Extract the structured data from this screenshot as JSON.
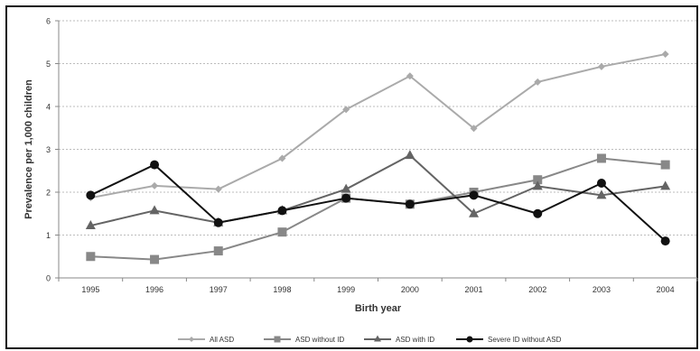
{
  "chart_data": {
    "type": "line",
    "title": "",
    "xlabel": "Birth year",
    "ylabel": "Prevalence per 1,000 children",
    "categories": [
      "1995",
      "1996",
      "1997",
      "1998",
      "1999",
      "2000",
      "2001",
      "2002",
      "2003",
      "2004"
    ],
    "ylim": [
      0,
      6
    ],
    "yticks": [
      0,
      1,
      2,
      3,
      4,
      5,
      6
    ],
    "grid": "horizontal dashed",
    "legend_position": "bottom",
    "series": [
      {
        "name": "All ASD",
        "color": "#aaaaaa",
        "marker": "diamond",
        "values": [
          1.87,
          2.15,
          2.07,
          2.79,
          3.93,
          4.71,
          3.49,
          4.57,
          4.93,
          5.22
        ]
      },
      {
        "name": "ASD without ID",
        "color": "#888888",
        "marker": "square",
        "values": [
          0.5,
          0.43,
          0.63,
          1.07,
          1.86,
          1.72,
          2.0,
          2.29,
          2.79,
          2.64
        ]
      },
      {
        "name": "ASD with ID",
        "color": "#646464",
        "marker": "triangle",
        "values": [
          1.22,
          1.57,
          1.29,
          1.57,
          2.07,
          2.86,
          1.5,
          2.14,
          1.93,
          2.14
        ]
      },
      {
        "name": "Severe ID without ASD",
        "color": "#111111",
        "marker": "circle",
        "values": [
          1.93,
          2.64,
          1.29,
          1.57,
          1.86,
          1.72,
          1.93,
          1.5,
          2.21,
          0.86
        ]
      }
    ]
  }
}
